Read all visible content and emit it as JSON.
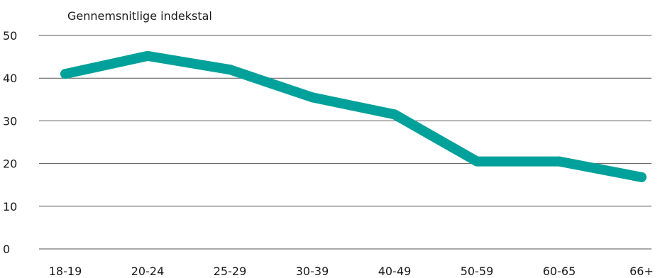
{
  "chart_data": {
    "type": "line",
    "ylabel": "Gennemsnitlige indekstal",
    "categories": [
      "18-19",
      "20-24",
      "25-29",
      "30-39",
      "40-49",
      "50-59",
      "60-65",
      "66+"
    ],
    "series": [
      {
        "values": [
          41,
          45.2,
          42,
          35.5,
          31.5,
          20.5,
          20.5,
          16.8
        ],
        "color": "#00a19a"
      }
    ],
    "ylim": [
      0,
      50
    ],
    "yticks": [
      0,
      10,
      20,
      30,
      40,
      50
    ],
    "grid": true
  }
}
